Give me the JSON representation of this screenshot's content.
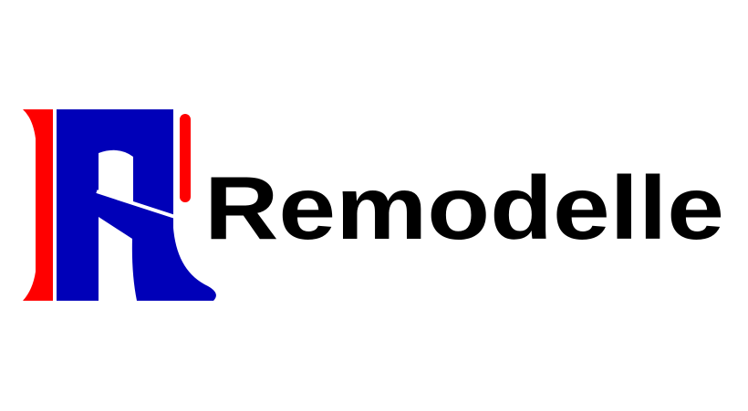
{
  "brand": {
    "name": "Remodelle"
  }
}
